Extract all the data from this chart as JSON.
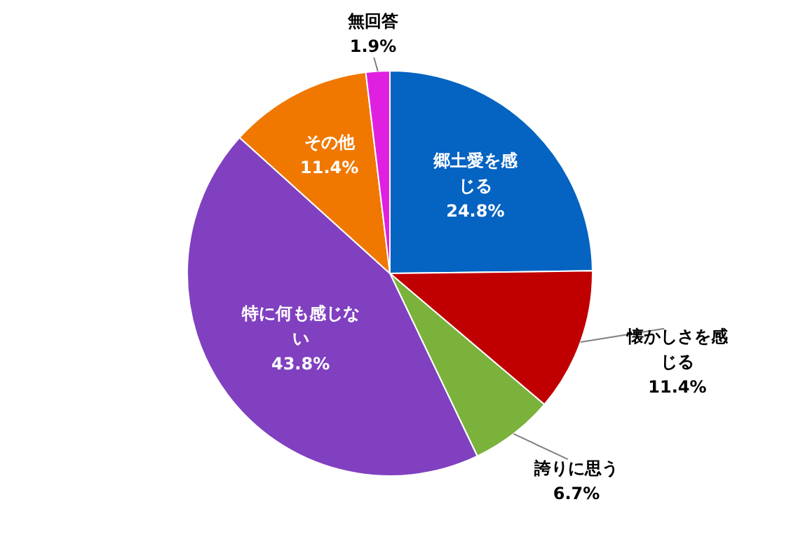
{
  "chart_data": {
    "type": "pie",
    "categories": [
      "郷土愛を感じる",
      "懐かしさを感じる",
      "誇りに思う",
      "特に何も感じない",
      "その他",
      "無回答"
    ],
    "values": [
      24.8,
      11.4,
      6.7,
      43.8,
      11.4,
      1.9
    ],
    "colors": [
      "#0563c1",
      "#c00000",
      "#7ab23c",
      "#8040c0",
      "#f07800",
      "#e020e0"
    ],
    "value_labels": [
      "24.8%",
      "11.4%",
      "6.7%",
      "43.8%",
      "11.4%",
      "1.9%"
    ],
    "legend": false
  }
}
